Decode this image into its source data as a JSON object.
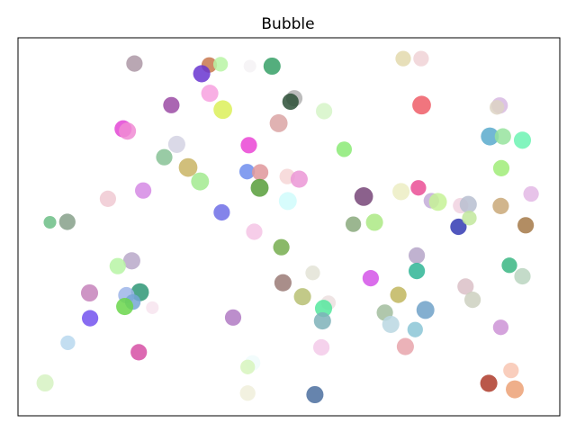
{
  "chart_data": {
    "type": "scatter",
    "title": "Bubble",
    "xlabel": "",
    "ylabel": "",
    "xlim": [
      0,
      100
    ],
    "ylim": [
      0,
      100
    ],
    "grid": false,
    "axis_ticks": false,
    "points": [
      {
        "x": 21.5,
        "y": 93.2,
        "size": 100,
        "color": "#ad98a6"
      },
      {
        "x": 35.3,
        "y": 92.8,
        "size": 90,
        "color": "#c8774e"
      },
      {
        "x": 37.4,
        "y": 93.0,
        "size": 80,
        "color": "#b9f4a5"
      },
      {
        "x": 42.8,
        "y": 92.5,
        "size": 60,
        "color": "#f4f2f5"
      },
      {
        "x": 46.9,
        "y": 92.5,
        "size": 110,
        "color": "#36a066"
      },
      {
        "x": 33.9,
        "y": 90.5,
        "size": 110,
        "color": "#6835d0"
      },
      {
        "x": 71.1,
        "y": 94.5,
        "size": 90,
        "color": "#e3d9ad"
      },
      {
        "x": 74.4,
        "y": 94.5,
        "size": 90,
        "color": "#f0d2d6"
      },
      {
        "x": 35.4,
        "y": 85.3,
        "size": 110,
        "color": "#f7a1df"
      },
      {
        "x": 28.3,
        "y": 82.2,
        "size": 100,
        "color": "#9b4ba4"
      },
      {
        "x": 37.8,
        "y": 81.0,
        "size": 130,
        "color": "#dcf059"
      },
      {
        "x": 51.0,
        "y": 84.0,
        "size": 100,
        "color": "#b0b0b0"
      },
      {
        "x": 50.3,
        "y": 83.1,
        "size": 100,
        "color": "#2d5037"
      },
      {
        "x": 56.5,
        "y": 80.6,
        "size": 100,
        "color": "#d6f4c8"
      },
      {
        "x": 74.5,
        "y": 82.2,
        "size": 130,
        "color": "#ee5d67"
      },
      {
        "x": 88.9,
        "y": 82.1,
        "size": 100,
        "color": "#d7b8e2"
      },
      {
        "x": 88.4,
        "y": 81.6,
        "size": 80,
        "color": "#ddd3c3"
      },
      {
        "x": 48.1,
        "y": 77.4,
        "size": 120,
        "color": "#daa5a4"
      },
      {
        "x": 19.4,
        "y": 75.9,
        "size": 110,
        "color": "#e345d5"
      },
      {
        "x": 20.2,
        "y": 75.3,
        "size": 110,
        "color": "#f08bd3"
      },
      {
        "x": 29.3,
        "y": 71.8,
        "size": 110,
        "color": "#d3d2e3"
      },
      {
        "x": 42.6,
        "y": 71.6,
        "size": 100,
        "color": "#ea45d5"
      },
      {
        "x": 60.2,
        "y": 70.5,
        "size": 90,
        "color": "#8bea76"
      },
      {
        "x": 87.1,
        "y": 73.9,
        "size": 120,
        "color": "#59aacd"
      },
      {
        "x": 89.5,
        "y": 73.9,
        "size": 100,
        "color": "#97e39e"
      },
      {
        "x": 93.1,
        "y": 72.9,
        "size": 110,
        "color": "#6cf3b3"
      },
      {
        "x": 27.0,
        "y": 68.4,
        "size": 100,
        "color": "#87c295"
      },
      {
        "x": 31.4,
        "y": 65.7,
        "size": 130,
        "color": "#c9b464"
      },
      {
        "x": 42.3,
        "y": 64.6,
        "size": 90,
        "color": "#6e8ded"
      },
      {
        "x": 44.7,
        "y": 64.4,
        "size": 100,
        "color": "#df979b"
      },
      {
        "x": 33.6,
        "y": 62.0,
        "size": 120,
        "color": "#a2ea8f"
      },
      {
        "x": 44.6,
        "y": 60.3,
        "size": 120,
        "color": "#579d3a"
      },
      {
        "x": 49.7,
        "y": 63.3,
        "size": 90,
        "color": "#f6d6d6"
      },
      {
        "x": 51.9,
        "y": 62.6,
        "size": 110,
        "color": "#eb96d6"
      },
      {
        "x": 23.1,
        "y": 59.6,
        "size": 100,
        "color": "#d58ae4"
      },
      {
        "x": 16.6,
        "y": 57.4,
        "size": 100,
        "color": "#f0c9d2"
      },
      {
        "x": 63.8,
        "y": 58.0,
        "size": 130,
        "color": "#774578"
      },
      {
        "x": 70.7,
        "y": 59.3,
        "size": 110,
        "color": "#ecedc3"
      },
      {
        "x": 73.9,
        "y": 60.3,
        "size": 90,
        "color": "#ea4d95"
      },
      {
        "x": 89.2,
        "y": 65.5,
        "size": 100,
        "color": "#a0ec78"
      },
      {
        "x": 94.7,
        "y": 58.7,
        "size": 90,
        "color": "#e3b8e5"
      },
      {
        "x": 76.3,
        "y": 56.9,
        "size": 90,
        "color": "#c3acd8"
      },
      {
        "x": 77.5,
        "y": 56.6,
        "size": 120,
        "color": "#c6f297"
      },
      {
        "x": 81.7,
        "y": 55.6,
        "size": 90,
        "color": "#f1d2e0"
      },
      {
        "x": 83.1,
        "y": 55.9,
        "size": 110,
        "color": "#b7bed0"
      },
      {
        "x": 89.1,
        "y": 55.5,
        "size": 100,
        "color": "#c9a878"
      },
      {
        "x": 49.8,
        "y": 56.8,
        "size": 120,
        "color": "#d0fbfb"
      },
      {
        "x": 37.6,
        "y": 53.8,
        "size": 100,
        "color": "#6e6ee6"
      },
      {
        "x": 5.9,
        "y": 51.2,
        "size": 60,
        "color": "#6cbe86"
      },
      {
        "x": 9.1,
        "y": 51.3,
        "size": 100,
        "color": "#86a08a"
      },
      {
        "x": 61.9,
        "y": 50.7,
        "size": 90,
        "color": "#8aa97c"
      },
      {
        "x": 65.8,
        "y": 51.2,
        "size": 110,
        "color": "#abe984"
      },
      {
        "x": 81.3,
        "y": 50.0,
        "size": 100,
        "color": "#3339b3"
      },
      {
        "x": 83.3,
        "y": 52.3,
        "size": 80,
        "color": "#c2e89c"
      },
      {
        "x": 93.7,
        "y": 50.4,
        "size": 100,
        "color": "#a57948"
      },
      {
        "x": 43.6,
        "y": 48.7,
        "size": 100,
        "color": "#f4c4e5"
      },
      {
        "x": 48.6,
        "y": 44.6,
        "size": 100,
        "color": "#75ad4f"
      },
      {
        "x": 21.0,
        "y": 41.0,
        "size": 110,
        "color": "#b9a8c9"
      },
      {
        "x": 18.4,
        "y": 39.6,
        "size": 100,
        "color": "#b7f4a4"
      },
      {
        "x": 73.6,
        "y": 42.4,
        "size": 100,
        "color": "#b5a4c8"
      },
      {
        "x": 90.7,
        "y": 39.8,
        "size": 90,
        "color": "#3ab683"
      },
      {
        "x": 73.6,
        "y": 38.3,
        "size": 100,
        "color": "#2fb595"
      },
      {
        "x": 54.4,
        "y": 37.8,
        "size": 80,
        "color": "#e3e3d6"
      },
      {
        "x": 93.1,
        "y": 36.9,
        "size": 100,
        "color": "#bad5c0"
      },
      {
        "x": 65.1,
        "y": 36.4,
        "size": 100,
        "color": "#d353e7"
      },
      {
        "x": 48.9,
        "y": 35.2,
        "size": 110,
        "color": "#9a7a76"
      },
      {
        "x": 13.2,
        "y": 32.5,
        "size": 110,
        "color": "#c583bb"
      },
      {
        "x": 22.5,
        "y": 32.7,
        "size": 120,
        "color": "#2e9775"
      },
      {
        "x": 20.0,
        "y": 31.9,
        "size": 100,
        "color": "#9db5e9"
      },
      {
        "x": 21.2,
        "y": 30.1,
        "size": 90,
        "color": "#75a6d6"
      },
      {
        "x": 52.5,
        "y": 31.5,
        "size": 110,
        "color": "#b7c073"
      },
      {
        "x": 70.2,
        "y": 32.0,
        "size": 100,
        "color": "#c1b65e"
      },
      {
        "x": 82.6,
        "y": 34.2,
        "size": 100,
        "color": "#dac0c7"
      },
      {
        "x": 83.9,
        "y": 30.7,
        "size": 100,
        "color": "#ccd0c0"
      },
      {
        "x": 57.3,
        "y": 29.9,
        "size": 80,
        "color": "#ecdfdf"
      },
      {
        "x": 19.7,
        "y": 28.9,
        "size": 110,
        "color": "#6ad64b"
      },
      {
        "x": 24.8,
        "y": 28.6,
        "size": 60,
        "color": "#f7e4ee"
      },
      {
        "x": 56.4,
        "y": 28.4,
        "size": 110,
        "color": "#55e89e"
      },
      {
        "x": 13.3,
        "y": 25.8,
        "size": 100,
        "color": "#7352ef"
      },
      {
        "x": 39.7,
        "y": 26.0,
        "size": 100,
        "color": "#b07ac3"
      },
      {
        "x": 56.2,
        "y": 25.1,
        "size": 110,
        "color": "#7eb1b9"
      },
      {
        "x": 67.7,
        "y": 27.3,
        "size": 100,
        "color": "#a2bd9e"
      },
      {
        "x": 68.8,
        "y": 24.2,
        "size": 110,
        "color": "#bad7e2"
      },
      {
        "x": 73.3,
        "y": 22.8,
        "size": 90,
        "color": "#8bc6d6"
      },
      {
        "x": 75.2,
        "y": 28.0,
        "size": 120,
        "color": "#6fa1c8"
      },
      {
        "x": 89.1,
        "y": 23.4,
        "size": 90,
        "color": "#cd93d6"
      },
      {
        "x": 9.2,
        "y": 19.3,
        "size": 80,
        "color": "#b9d8ef"
      },
      {
        "x": 22.3,
        "y": 16.8,
        "size": 100,
        "color": "#d64fa4"
      },
      {
        "x": 56.0,
        "y": 18.1,
        "size": 100,
        "color": "#f3cae9"
      },
      {
        "x": 71.5,
        "y": 18.3,
        "size": 110,
        "color": "#e8a5ac"
      },
      {
        "x": 43.3,
        "y": 14.0,
        "size": 90,
        "color": "#f0fbfb"
      },
      {
        "x": 42.4,
        "y": 12.9,
        "size": 80,
        "color": "#d7f5bd"
      },
      {
        "x": 91.0,
        "y": 12.0,
        "size": 90,
        "color": "#f8c5b2"
      },
      {
        "x": 5.0,
        "y": 8.7,
        "size": 110,
        "color": "#d6f2c2"
      },
      {
        "x": 42.4,
        "y": 6.0,
        "size": 90,
        "color": "#f0efda"
      },
      {
        "x": 54.8,
        "y": 5.6,
        "size": 110,
        "color": "#4b6e9f"
      },
      {
        "x": 86.9,
        "y": 8.6,
        "size": 110,
        "color": "#ae3b2a"
      },
      {
        "x": 91.7,
        "y": 7.0,
        "size": 120,
        "color": "#eca176"
      }
    ]
  }
}
